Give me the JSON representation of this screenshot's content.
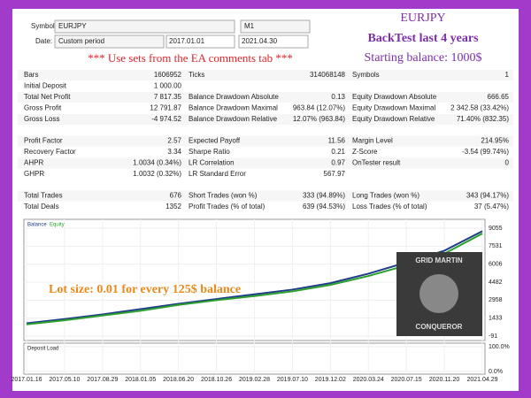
{
  "form": {
    "symbol_label": "Symbol",
    "symbol": "EURJPY",
    "period": "M1",
    "date_label": "Date:",
    "date_mode": "Custom period",
    "date_from": "2017.01.01",
    "date_to": "2021.04.30"
  },
  "header": {
    "title": "EURJPY",
    "subtitle": "BackTest last 4 years",
    "balance": "Starting balance: 1000$"
  },
  "note": "*** Use sets from the EA comments tab ***",
  "stats": {
    "groups": [
      [
        [
          "Bars",
          "1606952",
          "Ticks",
          "314068148",
          "Symbols",
          "1"
        ],
        [
          "Initial Deposit",
          "1 000.00"
        ],
        [
          "Total Net Profit",
          "7 817.35",
          "Balance Drawdown Absolute",
          "0.13",
          "Equity Drawdown Absolute",
          "666.65"
        ],
        [
          "Gross Profit",
          "12 791.87",
          "Balance Drawdown Maximal",
          "963.84 (12.07%)",
          "Equity Drawdown Maximal",
          "2 342.58 (33.42%)"
        ],
        [
          "Gross Loss",
          "-4 974.52",
          "Balance Drawdown Relative",
          "12.07% (963.84)",
          "Equity Drawdown Relative",
          "71.40% (832.35)"
        ]
      ],
      [
        [
          "Profit Factor",
          "2.57",
          "Expected Payoff",
          "11.56",
          "Margin Level",
          "214.95%"
        ],
        [
          "Recovery Factor",
          "3.34",
          "Sharpe Ratio",
          "0.21",
          "Z-Score",
          "-3.54 (99.74%)"
        ],
        [
          "AHPR",
          "1.0034 (0.34%)",
          "LR Correlation",
          "0.97",
          "OnTester result",
          "0"
        ],
        [
          "GHPR",
          "1.0032 (0.32%)",
          "LR Standard Error",
          "567.97"
        ]
      ],
      [
        [
          "Total Trades",
          "676",
          "Short Trades (won %)",
          "333 (94.89%)",
          "Long Trades (won %)",
          "343 (94.17%)"
        ],
        [
          "Total Deals",
          "1352",
          "Profit Trades (% of total)",
          "639 (94.53%)",
          "Loss Trades (% of total)",
          "37 (5.47%)"
        ]
      ]
    ]
  },
  "chart_data": {
    "type": "line",
    "categories": [
      "2017.01.16",
      "2017.05.10",
      "2017.08.29",
      "2018.01.05",
      "2018.06.20",
      "2018.10.26",
      "2019.02.28",
      "2019.07.10",
      "2019.12.02",
      "2020.03.24",
      "2020.07.15",
      "2020.11.20",
      "2021.04.29"
    ],
    "series": [
      {
        "name": "Balance",
        "color": "#1f3c88",
        "values": [
          1000,
          1350,
          1750,
          2200,
          2650,
          3050,
          3450,
          3850,
          4400,
          5200,
          6150,
          7150,
          8800
        ]
      },
      {
        "name": "Equity",
        "color": "#2ca02c",
        "values": [
          900,
          1250,
          1650,
          2050,
          2550,
          2950,
          3300,
          3700,
          4250,
          5000,
          5900,
          6900,
          8600
        ]
      }
    ],
    "ylim": [
      -91,
      9055
    ],
    "yticks": [
      -91,
      1433,
      2958,
      4482,
      6006,
      7531,
      9055
    ],
    "load": {
      "title": "Deposit Load",
      "ylim": [
        0,
        100
      ],
      "yticks": [
        {
          "value": 0,
          "label": "0.0%"
        },
        {
          "value": 100,
          "label": "100.0%"
        }
      ]
    }
  },
  "overlay": "Lot size: 0.01 for every 125$ balance",
  "logo": {
    "top": "GRID MARTIN",
    "bottom": "CONQUEROR"
  }
}
